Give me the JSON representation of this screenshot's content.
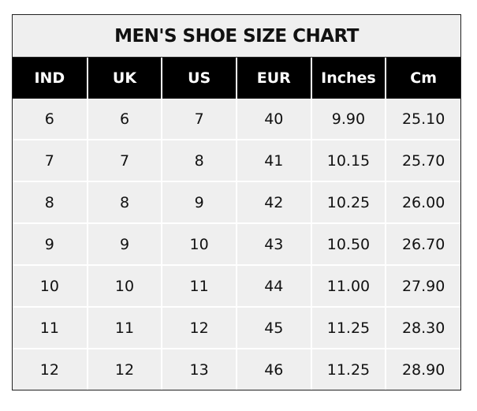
{
  "title": "MEN'S SHOE SIZE CHART",
  "columns": [
    "IND",
    "UK",
    "US",
    "EUR",
    "Inches",
    "Cm"
  ],
  "rows": [
    [
      "6",
      "6",
      "7",
      "40",
      "9.90",
      "25.10"
    ],
    [
      "7",
      "7",
      "8",
      "41",
      "10.15",
      "25.70"
    ],
    [
      "8",
      "8",
      "9",
      "42",
      "10.25",
      "26.00"
    ],
    [
      "9",
      "9",
      "10",
      "43",
      "10.50",
      "26.70"
    ],
    [
      "10",
      "10",
      "11",
      "44",
      "11.00",
      "27.90"
    ],
    [
      "11",
      "11",
      "12",
      "45",
      "11.25",
      "28.30"
    ],
    [
      "12",
      "12",
      "13",
      "46",
      "11.25",
      "28.90"
    ]
  ],
  "colors": {
    "header_bg": "#000000",
    "header_text": "#ffffff",
    "cell_bg": "#efefef",
    "grid": "#ffffff"
  }
}
